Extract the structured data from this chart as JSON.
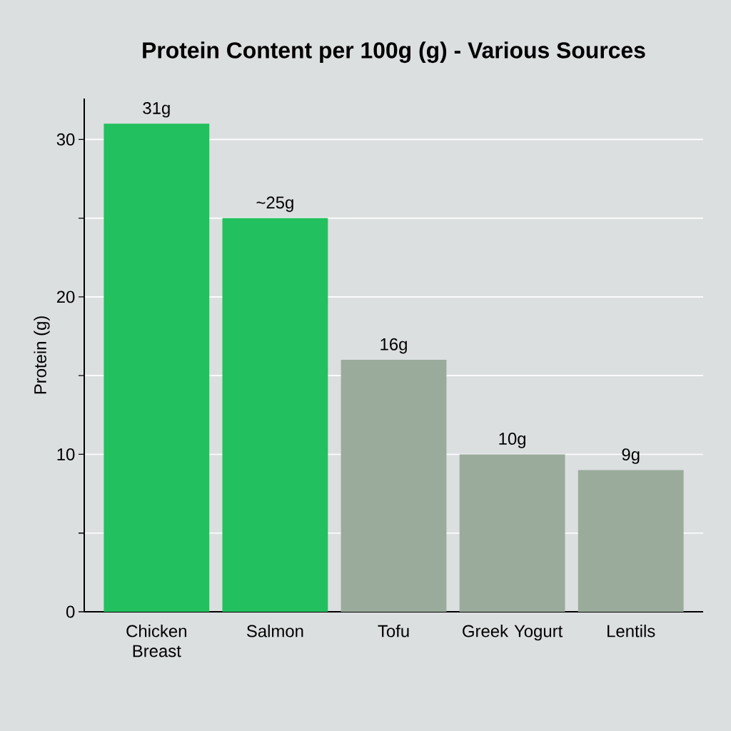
{
  "chart_data": {
    "type": "bar",
    "title": "Protein Content per 100g (g) - Various Sources",
    "ylabel": "Protein (g)",
    "categories": [
      "Chicken Breast",
      "Salmon",
      "Tofu",
      "Greek Yogurt",
      "Lentils"
    ],
    "values": [
      31,
      25,
      16,
      10,
      9
    ],
    "colors": [
      "#22c05e",
      "#22c05e",
      "#9aab9c",
      "#9aab9c",
      "#9aab9c"
    ],
    "value_labels": [
      "31g",
      "~25g",
      "16g",
      "10g",
      "9g"
    ],
    "ylim": [
      0,
      32.6
    ],
    "yticks": [
      0,
      {
        "value": 5,
        "label": null
      },
      10,
      {
        "value": 15,
        "label": null
      },
      20,
      {
        "value": 25,
        "label": null
      },
      30
    ],
    "grid": "y"
  }
}
